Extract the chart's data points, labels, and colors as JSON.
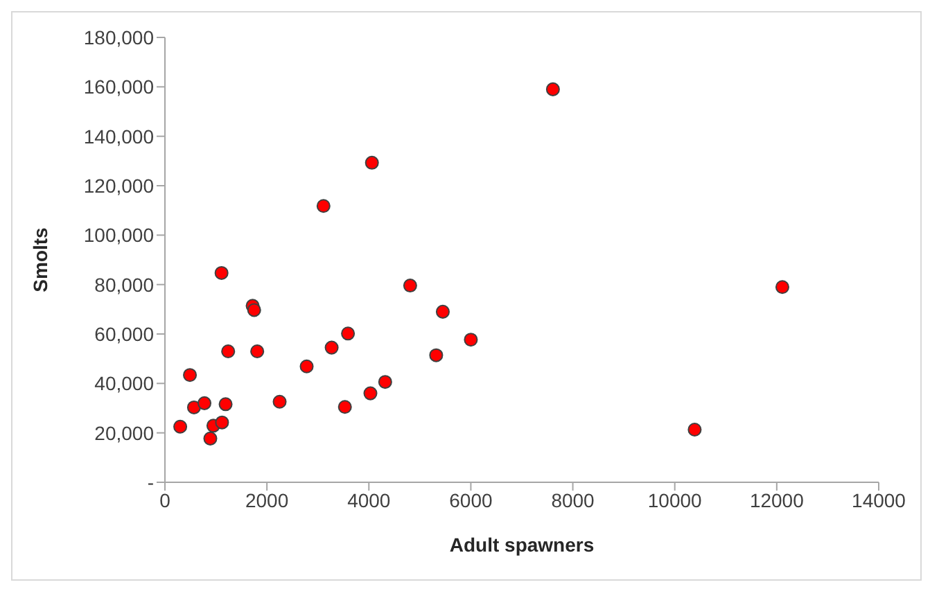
{
  "chart_data": {
    "type": "scatter",
    "xlabel": "Adult spawners",
    "ylabel": "Smolts",
    "marker": "circle",
    "grid": false,
    "legend": false,
    "xlim": [
      0,
      14000
    ],
    "xticks": [
      0,
      2000,
      4000,
      6000,
      8000,
      10000,
      12000,
      14000
    ],
    "ylim": [
      0,
      180000
    ],
    "yticks": [
      {
        "value": 0,
        "label": "-"
      },
      {
        "value": 20000,
        "label": "20,000"
      },
      {
        "value": 40000,
        "label": "40,000"
      },
      {
        "value": 60000,
        "label": "60,000"
      },
      {
        "value": 80000,
        "label": "80,000"
      },
      {
        "value": 100000,
        "label": "100,000"
      },
      {
        "value": 120000,
        "label": "120,000"
      },
      {
        "value": 140000,
        "label": "140,000"
      },
      {
        "value": 160000,
        "label": "160,000"
      },
      {
        "value": 180000,
        "label": "180,000"
      }
    ],
    "series": [
      {
        "color": "#ff0000",
        "x": [
          300,
          490,
          570,
          775,
          890,
          950,
          1120,
          1190,
          1240,
          1110,
          1720,
          1750,
          1810,
          2250,
          2780,
          3110,
          3270,
          3530,
          3590,
          4060,
          4030,
          4320,
          4810,
          5320,
          5450,
          6000,
          7610,
          10390,
          12110
        ],
        "values": [
          22500,
          43400,
          30300,
          32000,
          17700,
          22900,
          24200,
          31600,
          53000,
          84700,
          71400,
          69700,
          53000,
          32600,
          46900,
          111800,
          54500,
          30500,
          60200,
          129300,
          36000,
          40600,
          79600,
          51400,
          69000,
          57700,
          159000,
          21300,
          79000
        ]
      }
    ]
  }
}
